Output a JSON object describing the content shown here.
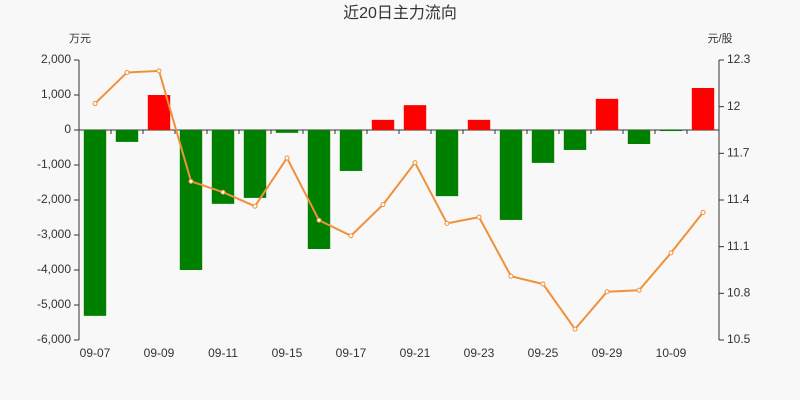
{
  "chart_data": {
    "type": "bar-line",
    "title": "近20日主力流向",
    "y_label": "万元",
    "y2_label": "元/股",
    "categories": [
      "09-07",
      null,
      "09-09",
      null,
      "09-11",
      null,
      "09-15",
      null,
      "09-17",
      null,
      "09-21",
      null,
      "09-23",
      null,
      "09-25",
      null,
      "09-29",
      null,
      "10-09",
      null
    ],
    "series": [
      {
        "type": "bar",
        "positive_color": "#ff0000",
        "negative_color": "#008000",
        "values": [
          -5310,
          -340,
          1000,
          -4000,
          -2110,
          -1940,
          -80,
          -3400,
          -1170,
          290,
          710,
          -1890,
          290,
          -2570,
          -940,
          -570,
          890,
          -400,
          -30,
          1200
        ]
      },
      {
        "type": "line",
        "axis": "y2",
        "color": "#f0913a",
        "values": [
          12.02,
          12.22,
          12.23,
          11.52,
          11.45,
          11.36,
          11.67,
          11.27,
          11.17,
          11.37,
          11.64,
          11.25,
          11.29,
          10.91,
          10.86,
          10.57,
          10.81,
          10.82,
          11.06,
          11.32
        ]
      }
    ],
    "ylim": [
      -6000,
      2000
    ],
    "yticks": [
      {
        "value": -6000,
        "label": "-6,000"
      },
      {
        "value": -5000,
        "label": "-5,000"
      },
      {
        "value": -4000,
        "label": "-4,000"
      },
      {
        "value": -3000,
        "label": "-3,000"
      },
      {
        "value": -2000,
        "label": "-2,000"
      },
      {
        "value": -1000,
        "label": "-1,000"
      },
      0,
      {
        "value": 1000,
        "label": "1,000"
      },
      {
        "value": 2000,
        "label": "2,000"
      }
    ],
    "y2lim": [
      10.5,
      12.3
    ],
    "y2ticks": [
      10.5,
      10.8,
      11.1,
      11.4,
      11.7,
      12,
      12.3
    ]
  }
}
